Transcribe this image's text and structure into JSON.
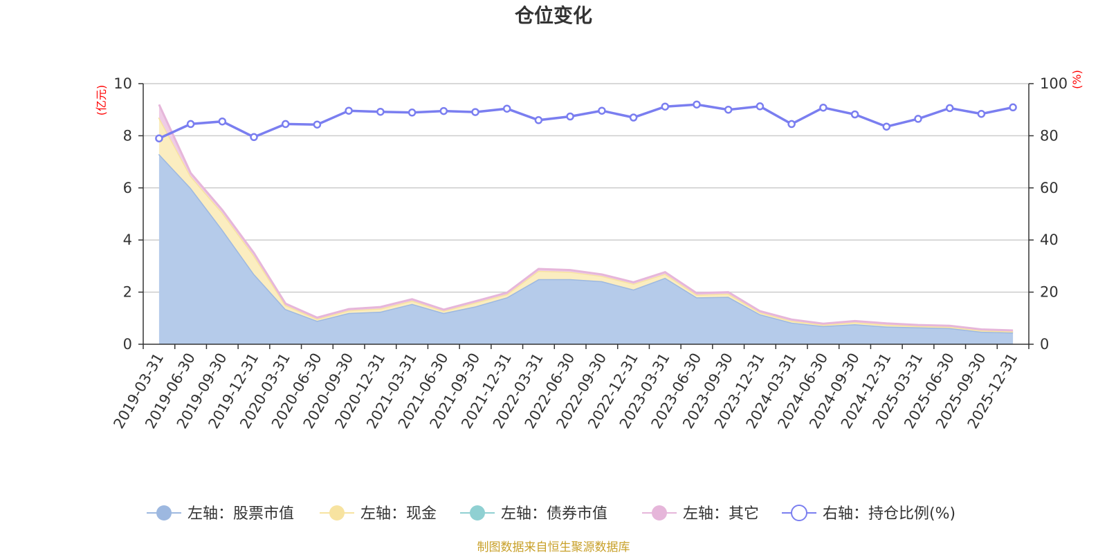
{
  "chart_data": {
    "type": "area",
    "title": "仓位变化",
    "left_axis_unit": "(亿元)",
    "right_axis_unit": "(%)",
    "ylim_left": [
      0,
      10
    ],
    "yticks_left": [
      "0",
      "2",
      "4",
      "6",
      "8",
      "10"
    ],
    "ylim_right": [
      0,
      100
    ],
    "yticks_right": [
      "0",
      "20",
      "40",
      "60",
      "80",
      "100"
    ],
    "grid": true,
    "legend_position": "bottom",
    "categories": [
      "2019-03-31",
      "2019-06-30",
      "2019-09-30",
      "2019-12-31",
      "2020-03-31",
      "2020-06-30",
      "2020-09-30",
      "2020-12-31",
      "2021-03-31",
      "2021-06-30",
      "2021-09-30",
      "2021-12-31",
      "2022-03-31",
      "2022-06-30",
      "2022-09-30",
      "2022-12-31",
      "2023-03-31",
      "2023-06-30",
      "2023-09-30",
      "2023-12-31",
      "2024-03-31",
      "2024-06-30",
      "2024-09-30",
      "2024-12-31",
      "2025-03-31",
      "2025-06-30",
      "2025-09-30",
      "2025-12-31"
    ],
    "series": [
      {
        "name": "左轴：股票市值",
        "axis": "left",
        "kind": "stacked-area",
        "color": "#9db8e0",
        "fill": "#b5cbea",
        "values": [
          7.3,
          6.0,
          4.4,
          2.7,
          1.35,
          0.9,
          1.2,
          1.25,
          1.55,
          1.2,
          1.45,
          1.8,
          2.5,
          2.5,
          2.42,
          2.1,
          2.55,
          1.8,
          1.82,
          1.15,
          0.83,
          0.7,
          0.77,
          0.68,
          0.65,
          0.62,
          0.48,
          0.45
        ]
      },
      {
        "name": "左轴：现金",
        "axis": "left",
        "kind": "stacked-area",
        "color": "#f7e3a0",
        "fill": "#fbedc0",
        "values": [
          1.4,
          0.45,
          0.65,
          0.7,
          0.15,
          0.07,
          0.1,
          0.12,
          0.12,
          0.08,
          0.15,
          0.12,
          0.32,
          0.28,
          0.2,
          0.22,
          0.15,
          0.1,
          0.12,
          0.07,
          0.07,
          0.05,
          0.07,
          0.07,
          0.05,
          0.05,
          0.05,
          0.04
        ]
      },
      {
        "name": "左轴：债券市值",
        "axis": "left",
        "kind": "stacked-area",
        "color": "#8fd0d2",
        "fill": "#b5e2e3",
        "values": [
          0,
          0,
          0,
          0,
          0,
          0,
          0,
          0,
          0,
          0,
          0,
          0,
          0,
          0,
          0,
          0,
          0,
          0,
          0,
          0,
          0,
          0,
          0,
          0,
          0,
          0,
          0,
          0
        ]
      },
      {
        "name": "左轴：其它",
        "axis": "left",
        "kind": "stacked-area",
        "color": "#e6b6da",
        "fill": "#efcce6",
        "values": [
          0.5,
          0.12,
          0.1,
          0.1,
          0.06,
          0.05,
          0.05,
          0.06,
          0.06,
          0.05,
          0.05,
          0.06,
          0.07,
          0.07,
          0.06,
          0.06,
          0.07,
          0.06,
          0.06,
          0.05,
          0.05,
          0.04,
          0.05,
          0.05,
          0.04,
          0.04,
          0.04,
          0.04
        ]
      },
      {
        "name": "右轴：持仓比例(%)",
        "axis": "right",
        "kind": "line",
        "color": "#7a7ef0",
        "values": [
          79,
          84.5,
          85.5,
          79.5,
          84.5,
          84.3,
          89.6,
          89.2,
          88.9,
          89.5,
          89.1,
          90.4,
          86,
          87.4,
          89.6,
          87,
          91.2,
          92,
          90,
          91.3,
          84.5,
          90.8,
          88.2,
          83.5,
          86.5,
          90.6,
          88.4,
          90.9
        ]
      }
    ]
  },
  "footer": {
    "source": "制图数据来自恒生聚源数据库"
  }
}
